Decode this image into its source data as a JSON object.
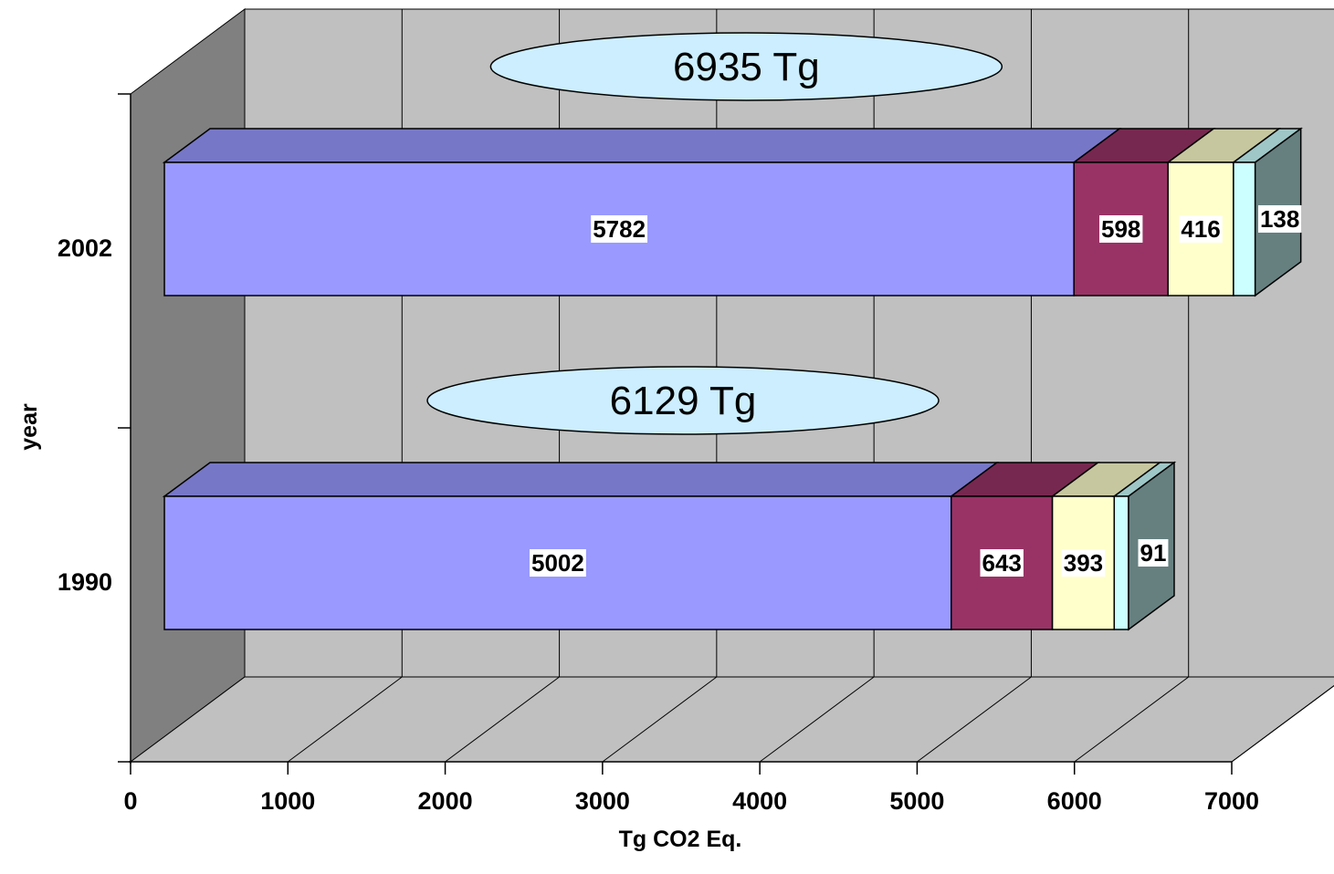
{
  "chart_data": {
    "type": "bar",
    "orientation": "horizontal",
    "stacked": true,
    "three_d": true,
    "categories": [
      "1990",
      "2002"
    ],
    "series": [
      {
        "values": [
          5002,
          5782
        ],
        "color": "#9999ff"
      },
      {
        "values": [
          643,
          598
        ],
        "color": "#993366"
      },
      {
        "values": [
          393,
          416
        ],
        "color": "#ffffcc"
      },
      {
        "values": [
          91,
          138
        ],
        "color": "#ccffff"
      }
    ],
    "data_labels": [
      [
        "5002",
        "643",
        "393",
        "91"
      ],
      [
        "5782",
        "598",
        "416",
        "138"
      ]
    ],
    "totals": [
      "6129 Tg",
      "6935 Tg"
    ],
    "total_color": "#cceeff",
    "xlabel": "Tg CO2 Eq.",
    "ylabel": "year",
    "xlim": [
      0,
      7000
    ],
    "xticks": [
      0,
      1000,
      2000,
      3000,
      4000,
      5000,
      6000,
      7000
    ],
    "xtick_labels": [
      "0",
      "1000",
      "2000",
      "3000",
      "4000",
      "5000",
      "6000",
      "7000"
    ],
    "grid": true,
    "wall_color": "#c0c0c0",
    "side_wall_color": "#808080",
    "floor_color": "#c0c0c0"
  }
}
